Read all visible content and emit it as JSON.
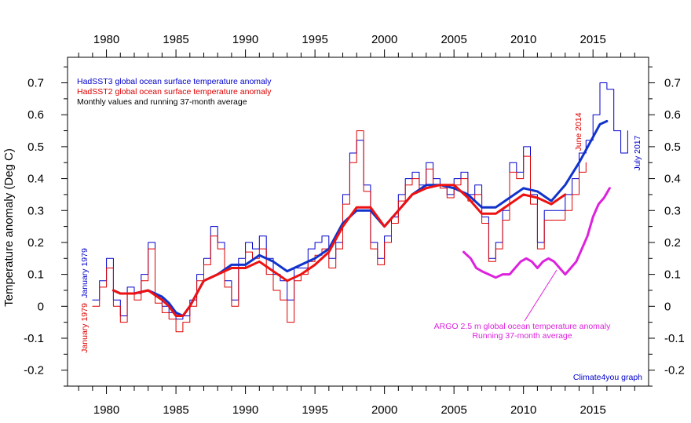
{
  "chart_data": {
    "type": "line",
    "title": "",
    "ylabel": "Temperature anomaly (Deg C)",
    "xlabel": "",
    "xlim": [
      1977.2,
      2019.0
    ],
    "ylim": [
      -0.25,
      0.78
    ],
    "x_ticks": [
      1980,
      1985,
      1990,
      1995,
      2000,
      2005,
      2010,
      2015
    ],
    "y_ticks": [
      -0.2,
      -0.1,
      0,
      0.1,
      0.2,
      0.3,
      0.4,
      0.5,
      0.6,
      0.7
    ],
    "grid": false,
    "legend_position": "top-left",
    "legend": [
      {
        "text": "HadSST3 global ocean surface temperature anomaly",
        "color": "#0000cc"
      },
      {
        "text": "HadSST2 global ocean surface temperature anomaly",
        "color": "#dd0000"
      },
      {
        "text": "Monthly values and running 37-month average",
        "color": "#000000"
      }
    ],
    "annotations": {
      "start_hadsst3": "January 1979",
      "start_hadsst2": "January 1979",
      "end_hadsst2": "June 2014",
      "end_hadsst3": "July 2017",
      "argo_line1": "ARGO 2.5 m global ocean temperature anomaly",
      "argo_line2": "Running 37-month average",
      "credit": "Climate4you graph"
    },
    "series": [
      {
        "name": "HadSST3 global ocean surface temperature anomaly",
        "style": "monthly",
        "color": "#0000cc",
        "x": [
          1979.0,
          1979.5,
          1980.0,
          1980.5,
          1981.0,
          1981.5,
          1982.0,
          1982.5,
          1983.0,
          1983.5,
          1984.0,
          1984.5,
          1985.0,
          1985.5,
          1986.0,
          1986.5,
          1987.0,
          1987.5,
          1988.0,
          1988.5,
          1989.0,
          1989.5,
          1990.0,
          1990.5,
          1991.0,
          1991.5,
          1992.0,
          1992.5,
          1993.0,
          1993.5,
          1994.0,
          1994.5,
          1995.0,
          1995.5,
          1996.0,
          1996.5,
          1997.0,
          1997.5,
          1998.0,
          1998.5,
          1999.0,
          1999.5,
          2000.0,
          2000.5,
          2001.0,
          2001.5,
          2002.0,
          2002.5,
          2003.0,
          2003.5,
          2004.0,
          2004.5,
          2005.0,
          2005.5,
          2006.0,
          2006.5,
          2007.0,
          2007.5,
          2008.0,
          2008.5,
          2009.0,
          2009.5,
          2010.0,
          2010.5,
          2011.0,
          2011.5,
          2012.0,
          2012.5,
          2013.0,
          2013.5,
          2014.0,
          2014.5,
          2015.0,
          2015.5,
          2016.0,
          2016.5,
          2017.0,
          2017.5
        ],
        "y": [
          0.02,
          0.08,
          0.15,
          0.02,
          -0.03,
          0.06,
          0.04,
          0.1,
          0.2,
          0.03,
          0.0,
          -0.02,
          -0.04,
          -0.03,
          0.02,
          0.1,
          0.15,
          0.25,
          0.2,
          0.08,
          0.02,
          0.15,
          0.2,
          0.18,
          0.22,
          0.15,
          0.1,
          0.08,
          0.02,
          0.12,
          0.12,
          0.18,
          0.2,
          0.22,
          0.15,
          0.2,
          0.35,
          0.48,
          0.52,
          0.38,
          0.2,
          0.15,
          0.22,
          0.28,
          0.35,
          0.4,
          0.42,
          0.38,
          0.45,
          0.4,
          0.38,
          0.35,
          0.4,
          0.42,
          0.35,
          0.38,
          0.28,
          0.15,
          0.2,
          0.3,
          0.45,
          0.42,
          0.5,
          0.35,
          0.2,
          0.3,
          0.3,
          0.3,
          0.35,
          0.4,
          0.48,
          0.52,
          0.6,
          0.7,
          0.68,
          0.55,
          0.48,
          0.55
        ]
      },
      {
        "name": "HadSST2 global ocean surface temperature anomaly",
        "style": "monthly",
        "color": "#dd0000",
        "x": [
          1979.0,
          1979.5,
          1980.0,
          1980.5,
          1981.0,
          1981.5,
          1982.0,
          1982.5,
          1983.0,
          1983.5,
          1984.0,
          1984.5,
          1985.0,
          1985.5,
          1986.0,
          1986.5,
          1987.0,
          1987.5,
          1988.0,
          1988.5,
          1989.0,
          1989.5,
          1990.0,
          1990.5,
          1991.0,
          1991.5,
          1992.0,
          1992.5,
          1993.0,
          1993.5,
          1994.0,
          1994.5,
          1995.0,
          1995.5,
          1996.0,
          1996.5,
          1997.0,
          1997.5,
          1998.0,
          1998.5,
          1999.0,
          1999.5,
          2000.0,
          2000.5,
          2001.0,
          2001.5,
          2002.0,
          2002.5,
          2003.0,
          2003.5,
          2004.0,
          2004.5,
          2005.0,
          2005.5,
          2006.0,
          2006.5,
          2007.0,
          2007.5,
          2008.0,
          2008.5,
          2009.0,
          2009.5,
          2010.0,
          2010.5,
          2011.0,
          2011.5,
          2012.0,
          2012.5,
          2013.0,
          2013.5,
          2014.0,
          2014.5
        ],
        "y": [
          0.0,
          0.06,
          0.12,
          0.0,
          -0.05,
          0.04,
          0.02,
          0.08,
          0.18,
          0.01,
          -0.02,
          -0.04,
          -0.08,
          -0.05,
          0.0,
          0.08,
          0.13,
          0.22,
          0.18,
          0.06,
          0.0,
          0.12,
          0.17,
          0.15,
          0.18,
          0.1,
          0.05,
          0.02,
          -0.05,
          0.08,
          0.1,
          0.14,
          0.16,
          0.18,
          0.12,
          0.18,
          0.32,
          0.45,
          0.55,
          0.36,
          0.18,
          0.13,
          0.2,
          0.26,
          0.33,
          0.38,
          0.4,
          0.37,
          0.43,
          0.38,
          0.37,
          0.34,
          0.38,
          0.4,
          0.33,
          0.35,
          0.26,
          0.14,
          0.18,
          0.27,
          0.42,
          0.4,
          0.47,
          0.32,
          0.18,
          0.27,
          0.27,
          0.27,
          0.3,
          0.35,
          0.42,
          0.45
        ]
      },
      {
        "name": "HadSST3 running 37-month average",
        "style": "average",
        "color": "#1133cc",
        "x": [
          1980.5,
          1981.0,
          1982.0,
          1983.0,
          1984.0,
          1984.5,
          1985.0,
          1985.5,
          1986.0,
          1986.5,
          1987.0,
          1988.0,
          1989.0,
          1990.0,
          1991.0,
          1992.0,
          1993.0,
          1994.0,
          1995.0,
          1996.0,
          1997.0,
          1998.0,
          1999.0,
          2000.0,
          2001.0,
          2002.0,
          2003.0,
          2004.0,
          2005.0,
          2006.0,
          2007.0,
          2008.0,
          2009.0,
          2010.0,
          2011.0,
          2012.0,
          2013.0,
          2014.0,
          2015.0,
          2015.5,
          2016.0
        ],
        "y": [
          0.05,
          0.04,
          0.04,
          0.05,
          0.03,
          0.01,
          -0.02,
          -0.03,
          0.0,
          0.04,
          0.08,
          0.1,
          0.13,
          0.13,
          0.16,
          0.14,
          0.11,
          0.13,
          0.15,
          0.18,
          0.26,
          0.3,
          0.3,
          0.25,
          0.3,
          0.35,
          0.38,
          0.38,
          0.37,
          0.35,
          0.31,
          0.31,
          0.34,
          0.37,
          0.36,
          0.33,
          0.38,
          0.45,
          0.53,
          0.57,
          0.58
        ]
      },
      {
        "name": "HadSST2 running 37-month average",
        "style": "average",
        "color": "#ee1111",
        "x": [
          1980.5,
          1981.0,
          1982.0,
          1983.0,
          1984.0,
          1984.5,
          1985.0,
          1985.5,
          1986.0,
          1986.5,
          1987.0,
          1988.0,
          1989.0,
          1990.0,
          1991.0,
          1992.0,
          1993.0,
          1994.0,
          1995.0,
          1996.0,
          1997.0,
          1998.0,
          1999.0,
          2000.0,
          2001.0,
          2002.0,
          2003.0,
          2004.0,
          2005.0,
          2006.0,
          2007.0,
          2008.0,
          2009.0,
          2010.0,
          2011.0,
          2012.0,
          2013.0
        ],
        "y": [
          0.05,
          0.04,
          0.04,
          0.05,
          0.02,
          0.0,
          -0.03,
          -0.03,
          0.0,
          0.04,
          0.08,
          0.1,
          0.12,
          0.12,
          0.14,
          0.11,
          0.08,
          0.1,
          0.13,
          0.17,
          0.25,
          0.31,
          0.31,
          0.25,
          0.3,
          0.35,
          0.37,
          0.38,
          0.38,
          0.34,
          0.29,
          0.29,
          0.32,
          0.35,
          0.34,
          0.32,
          0.35
        ]
      },
      {
        "name": "ARGO 2.5 m global ocean temperature anomaly",
        "style": "average",
        "color": "#dd22dd",
        "x": [
          2005.7,
          2006.2,
          2006.6,
          2007.0,
          2007.5,
          2008.0,
          2008.5,
          2009.0,
          2009.4,
          2009.8,
          2010.2,
          2010.6,
          2011.0,
          2011.4,
          2011.8,
          2012.2,
          2012.6,
          2013.0,
          2013.4,
          2013.8,
          2014.2,
          2014.6,
          2015.0,
          2015.4,
          2015.8,
          2016.2
        ],
        "y": [
          0.17,
          0.15,
          0.12,
          0.11,
          0.1,
          0.09,
          0.1,
          0.1,
          0.12,
          0.14,
          0.15,
          0.14,
          0.12,
          0.14,
          0.15,
          0.14,
          0.12,
          0.1,
          0.12,
          0.14,
          0.18,
          0.22,
          0.28,
          0.32,
          0.34,
          0.37
        ]
      }
    ]
  }
}
